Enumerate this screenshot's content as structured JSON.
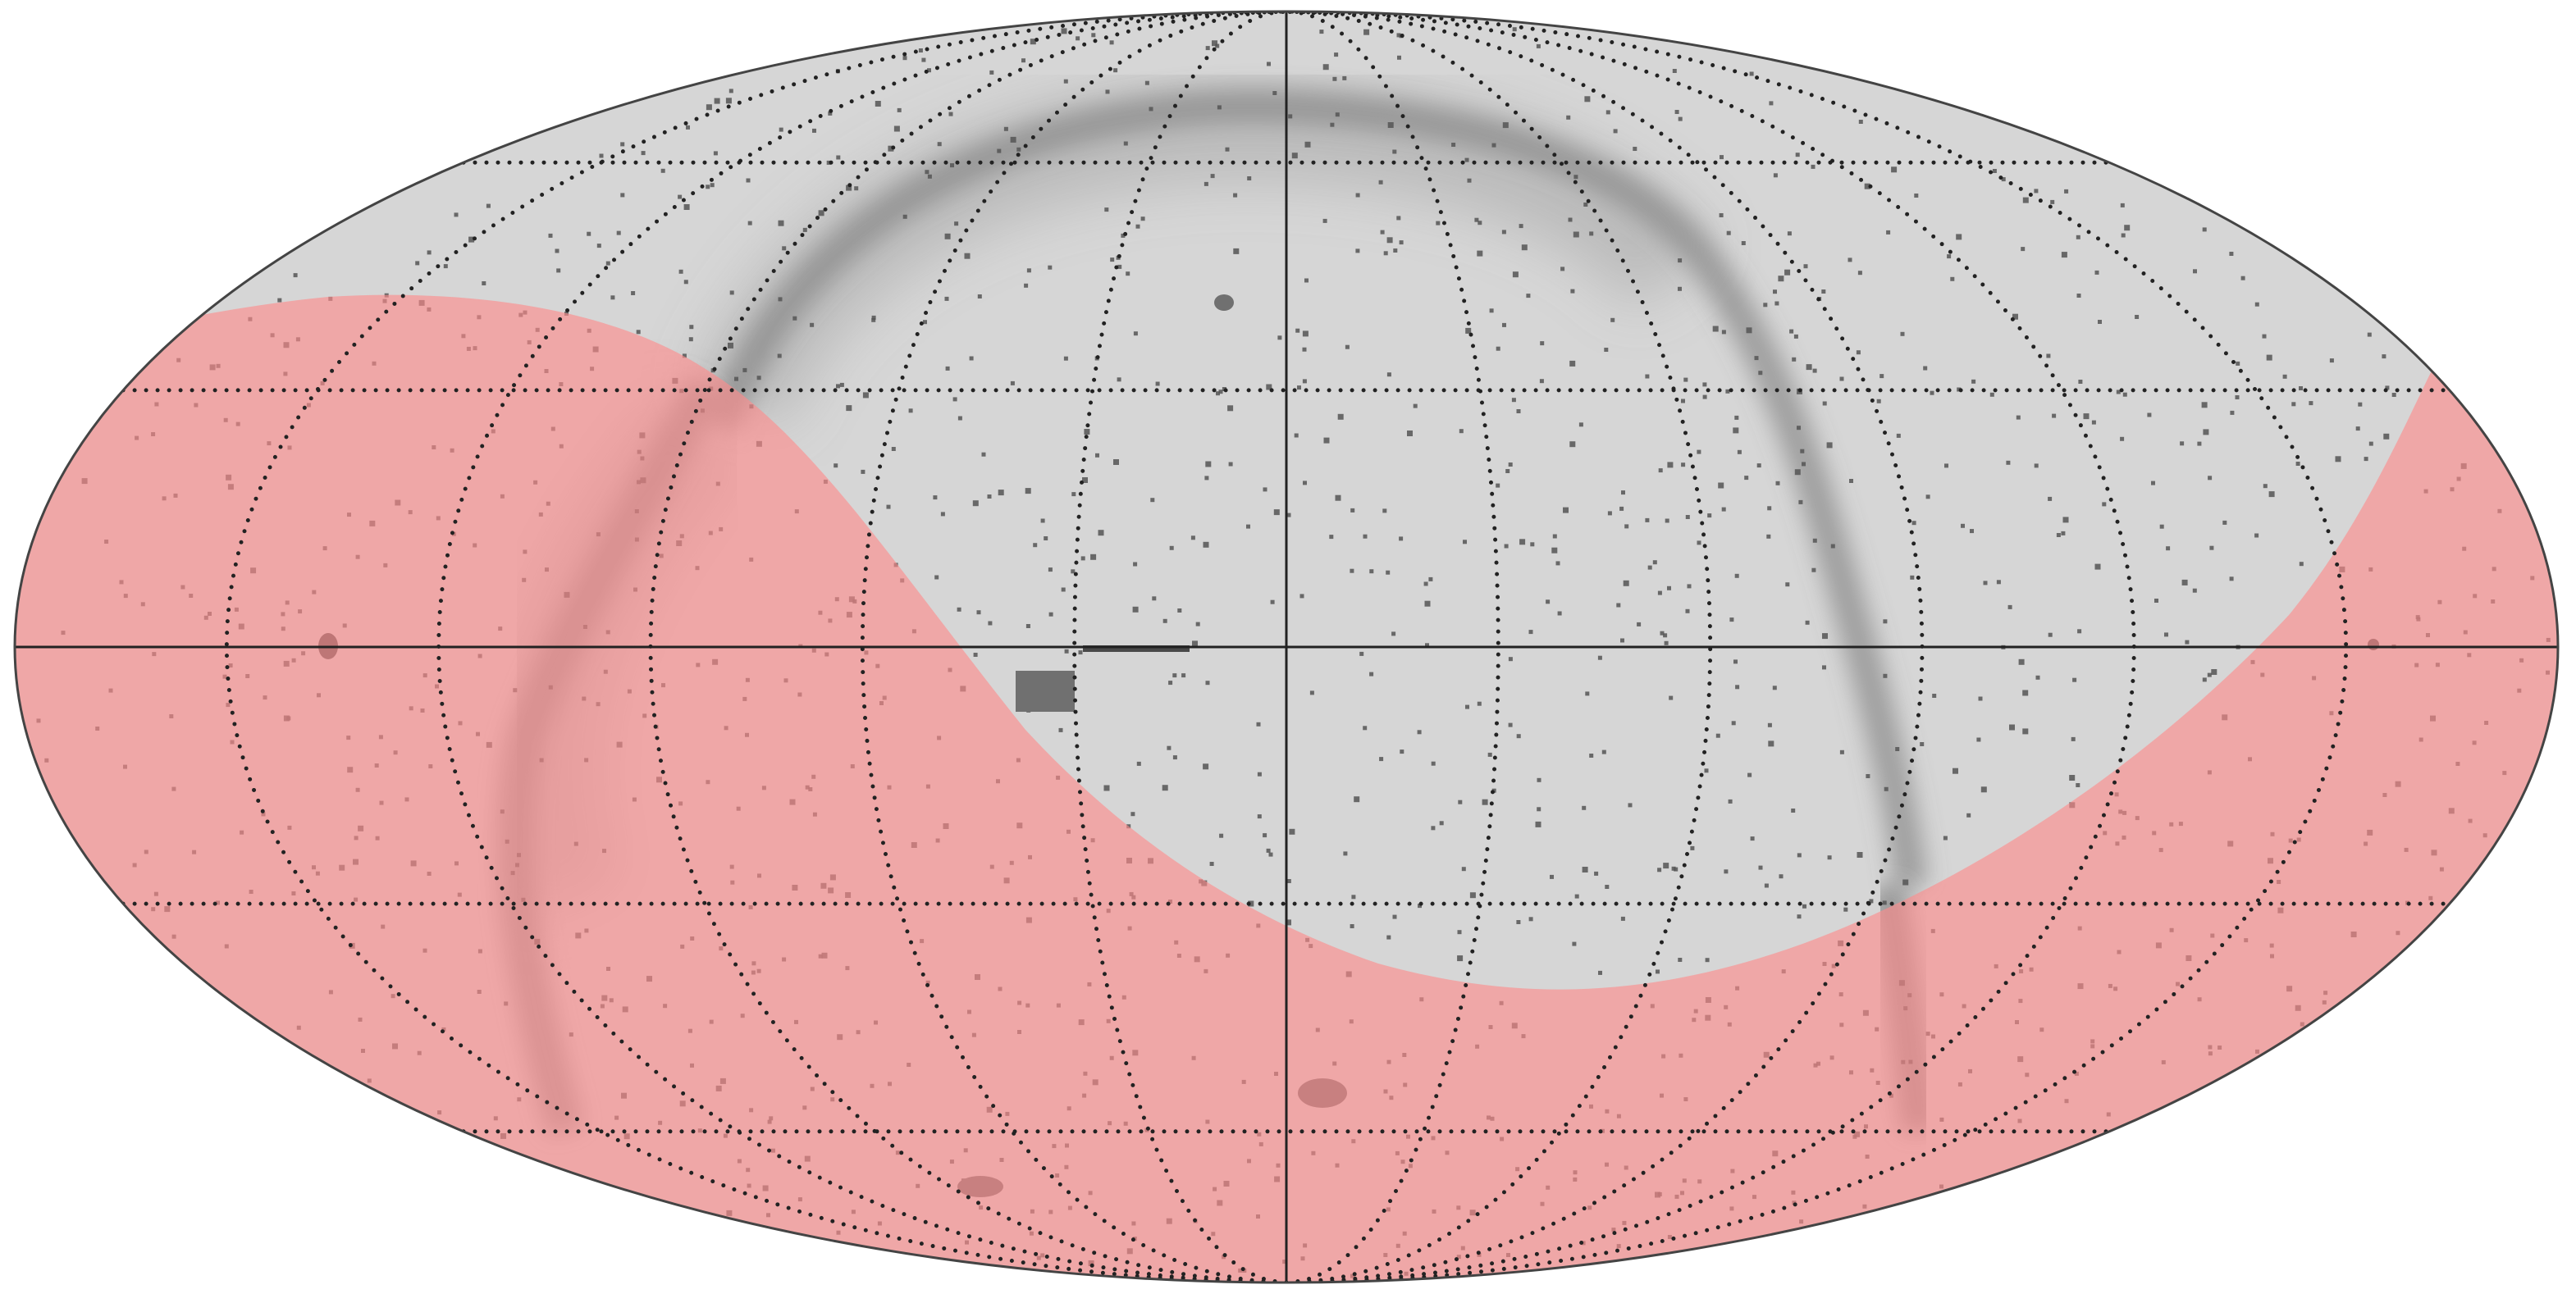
{
  "map": {
    "projection": "mollweide",
    "meridian_step_deg": 30,
    "parallel_step_deg": 30,
    "central_meridian": "solid",
    "equator": "solid",
    "graticule_style": "dotted"
  },
  "colors": {
    "background": "#ffffff",
    "sky_base": "#d6d6d6",
    "dust_lanes": "#6f6f6f",
    "point_sources": "#555555",
    "excluded_region": "#ff8a8a",
    "graticule": "#222222",
    "outline": "#444444"
  },
  "legend": {
    "excluded_region_label": ""
  }
}
